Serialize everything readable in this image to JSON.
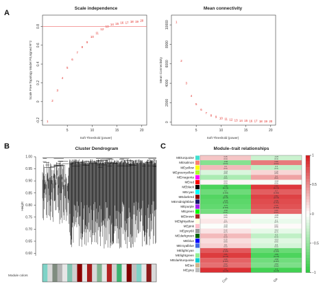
{
  "panels": {
    "a": {
      "letter": "A",
      "scale": {
        "title": "Scale independence",
        "xlabel": "Soft Threshold (power)",
        "ylabel": "Scale Free Topology Model Fit,signed R^2",
        "xticks": [
          5,
          10,
          15,
          20
        ],
        "yticks": [
          -0.2,
          0.0,
          0.2,
          0.4,
          0.6,
          0.8
        ],
        "xlim": [
          0,
          21
        ],
        "ylim": [
          -0.25,
          0.92
        ],
        "hline": 0.8,
        "hline_color": "#f08080",
        "powers": [
          "1",
          "2",
          "3",
          "4",
          "5",
          "6",
          "7",
          "8",
          "9",
          "10",
          "11",
          "12",
          "13",
          "14",
          "15",
          "16",
          "17",
          "18",
          "19",
          "20"
        ],
        "x": [
          1,
          2,
          3,
          4,
          5,
          6,
          7,
          8,
          9,
          10,
          11,
          12,
          13,
          14,
          15,
          16,
          17,
          18,
          19,
          20
        ],
        "y": [
          -0.21,
          0.01,
          0.12,
          0.25,
          0.36,
          0.45,
          0.52,
          0.58,
          0.63,
          0.69,
          0.73,
          0.77,
          0.8,
          0.82,
          0.83,
          0.84,
          0.84,
          0.85,
          0.85,
          0.86
        ]
      },
      "conn": {
        "title": "Mean connectivity",
        "xlabel": "Soft Threshold (power)",
        "ylabel": "Mean Connectivity",
        "xticks": [
          5,
          10,
          15,
          20
        ],
        "yticks": [
          0,
          2000,
          4000,
          6000,
          8000,
          10000
        ],
        "xlim": [
          0,
          21
        ],
        "ylim": [
          -300,
          11000
        ],
        "powers": [
          "1",
          "2",
          "3",
          "4",
          "5",
          "6",
          "7",
          "8",
          "9",
          "10",
          "11",
          "12",
          "13",
          "14",
          "15",
          "16",
          "17",
          "18",
          "19",
          "20"
        ],
        "x": [
          1,
          2,
          3,
          4,
          5,
          6,
          7,
          8,
          9,
          10,
          11,
          12,
          13,
          14,
          15,
          16,
          17,
          18,
          19,
          20
        ],
        "y": [
          10300,
          6300,
          4000,
          2700,
          1850,
          1300,
          950,
          700,
          530,
          410,
          320,
          260,
          210,
          175,
          150,
          130,
          115,
          100,
          90,
          80
        ]
      }
    },
    "b": {
      "letter": "B",
      "title": "Cluster Dendrogram",
      "ylabel": "Height",
      "yticks": [
        0.6,
        0.65,
        0.7,
        0.75,
        0.8,
        0.85,
        0.9,
        0.95,
        1.0
      ],
      "ylim": [
        0.59,
        1.0
      ],
      "colorbar_label": "Module colors",
      "colorbar": [
        "#7fd3c7",
        "#d9d9d9",
        "#7f8c7f",
        "#b3b3b3",
        "#e6e6e6",
        "#7fc4b0",
        "#d0d0d0",
        "#8b0000",
        "#e6e6e6",
        "#a61c1c",
        "#d9d9d9",
        "#7fb38f",
        "#e6e6e6",
        "#b22222",
        "#d0d0d0",
        "#3cb371",
        "#e6e6e6",
        "#800000",
        "#c0c0c0",
        "#7fd3c7",
        "#e6e6e6",
        "#8b1a1a",
        "#d9d9d9"
      ]
    },
    "c": {
      "letter": "C",
      "title": "Module–trait relationships",
      "traits": [
        "Con",
        "OA"
      ],
      "modules": [
        {
          "name": "MEturquoise",
          "swatch": "#40e0d0",
          "r": [
            0.25,
            -0.25
          ],
          "labels": [
            "0.25\n(0.4)",
            "-0.25\n(0.4)"
          ]
        },
        {
          "name": "MEsalmon",
          "swatch": "#fa8072",
          "r": [
            -0.58,
            0.58
          ],
          "labels": [
            "-0.58\n(0.03)",
            "0.58\n(0.03)"
          ]
        },
        {
          "name": "MEyellow",
          "swatch": "#ffff00",
          "r": [
            0.3,
            -0.3
          ],
          "labels": [
            "0.3\n(0.3)",
            "-0.3\n(0.3)"
          ]
        },
        {
          "name": "MEgreenyellow",
          "swatch": "#adff2f",
          "r": [
            -0.18,
            0.18
          ],
          "labels": [
            "-0.18\n(0.5)",
            "0.18\n(0.5)"
          ]
        },
        {
          "name": "MEmagenta",
          "swatch": "#ff00ff",
          "r": [
            -0.4,
            0.4
          ],
          "labels": [
            "-0.4\n(0.2)",
            "0.4\n(0.2)"
          ]
        },
        {
          "name": "MEred",
          "swatch": "#ff0000",
          "r": [
            0.04,
            -0.04
          ],
          "labels": [
            "0.04\n(0.9)",
            "-0.04\n(0.9)"
          ]
        },
        {
          "name": "MEblack",
          "swatch": "#000000",
          "r": [
            -0.86,
            0.86
          ],
          "labels": [
            "-0.86\n(8e-05)",
            "0.86\n(8e-05)"
          ]
        },
        {
          "name": "MEcyan",
          "swatch": "#00ffff",
          "r": [
            -0.7,
            0.7
          ],
          "labels": [
            "-0.7\n(0.005)",
            "0.7\n(0.005)"
          ]
        },
        {
          "name": "MEdarkred",
          "swatch": "#8b0000",
          "r": [
            -0.82,
            0.82
          ],
          "labels": [
            "-0.82\n(3e-04)",
            "0.82\n(3e-04)"
          ]
        },
        {
          "name": "MEmidnightblue",
          "swatch": "#191970",
          "r": [
            -0.78,
            0.78
          ],
          "labels": [
            "-0.78\n(0.001)",
            "0.78\n(0.001)"
          ]
        },
        {
          "name": "MEpurple",
          "swatch": "#a020f0",
          "r": [
            -0.75,
            0.75
          ],
          "labels": [
            "-0.75\n(0.002)",
            "0.75\n(0.002)"
          ]
        },
        {
          "name": "MEgreen",
          "swatch": "#00ff00",
          "r": [
            -0.66,
            0.66
          ],
          "labels": [
            "-0.66\n(0.01)",
            "0.66\n(0.01)"
          ]
        },
        {
          "name": "MEbrown",
          "swatch": "#a52a2a",
          "r": [
            0.05,
            -0.05
          ],
          "labels": [
            "0.05\n(0.9)",
            "-0.05\n(0.9)"
          ]
        },
        {
          "name": "MElightyellow",
          "swatch": "#ffffe0",
          "r": [
            0.1,
            -0.1
          ],
          "labels": [
            "0.1\n(0.7)",
            "-0.1\n(0.7)"
          ]
        },
        {
          "name": "MEpink",
          "swatch": "#ffc0cb",
          "r": [
            -0.02,
            0.02
          ],
          "labels": [
            "-0.02\n(0.9)",
            "0.02\n(0.9)"
          ]
        },
        {
          "name": "MEgrey60",
          "swatch": "#999999",
          "r": [
            0.12,
            -0.12
          ],
          "labels": [
            "0.12\n(0.7)",
            "-0.12\n(0.7)"
          ]
        },
        {
          "name": "MEdarkgreen",
          "swatch": "#006400",
          "r": [
            0.3,
            -0.3
          ],
          "labels": [
            "0.3\n(0.3)",
            "-0.3\n(0.3)"
          ]
        },
        {
          "name": "MEblue",
          "swatch": "#0000ff",
          "r": [
            0.15,
            -0.15
          ],
          "labels": [
            "0.15\n(0.6)",
            "-0.15\n(0.6)"
          ]
        },
        {
          "name": "MEroyalblue",
          "swatch": "#4169e1",
          "r": [
            0.2,
            -0.2
          ],
          "labels": [
            "0.2\n(0.5)",
            "-0.2\n(0.5)"
          ]
        },
        {
          "name": "MElightcyan",
          "swatch": "#e0ffff",
          "r": [
            0.72,
            -0.72
          ],
          "labels": [
            "0.72\n(0.004)",
            "-0.72\n(0.004)"
          ]
        },
        {
          "name": "MElightgreen",
          "swatch": "#90ee90",
          "r": [
            0.85,
            -0.85
          ],
          "labels": [
            "0.85\n(1e-04)",
            "-0.85\n(1e-04)"
          ]
        },
        {
          "name": "MEdarkturquoise",
          "swatch": "#00ced1",
          "r": [
            0.68,
            -0.68
          ],
          "labels": [
            "0.68\n(0.007)",
            "-0.68\n(0.007)"
          ]
        },
        {
          "name": "MEtan",
          "swatch": "#d2b48c",
          "r": [
            0.62,
            -0.62
          ],
          "labels": [
            "0.62\n(0.02)",
            "-0.62\n(0.02)"
          ]
        },
        {
          "name": "MEgrey",
          "swatch": "#bebebe",
          "r": [
            0.9,
            -0.9
          ],
          "labels": [
            "0.9\n(1e-05)",
            "-0.9\n(1e-05)"
          ]
        }
      ],
      "legend_ticks": [
        1,
        0.5,
        0,
        -0.5,
        -1
      ],
      "legend_labels": [
        "1",
        "0.5",
        "0",
        "−0.5",
        "−1"
      ],
      "colors": {
        "neg": "#2ecc40",
        "mid": "#ffffff",
        "pos": "#d7191c"
      }
    }
  },
  "chart_data": [
    {
      "type": "scatter",
      "title": "Scale independence",
      "xlabel": "Soft Threshold (power)",
      "ylabel": "Scale Free Topology Model Fit,signed R^2",
      "x": [
        1,
        2,
        3,
        4,
        5,
        6,
        7,
        8,
        9,
        10,
        11,
        12,
        13,
        14,
        15,
        16,
        17,
        18,
        19,
        20
      ],
      "y": [
        -0.21,
        0.01,
        0.12,
        0.25,
        0.36,
        0.45,
        0.52,
        0.58,
        0.63,
        0.69,
        0.73,
        0.77,
        0.8,
        0.82,
        0.83,
        0.84,
        0.84,
        0.85,
        0.85,
        0.86
      ],
      "hline": 0.8
    },
    {
      "type": "scatter",
      "title": "Mean connectivity",
      "xlabel": "Soft Threshold (power)",
      "ylabel": "Mean Connectivity",
      "x": [
        1,
        2,
        3,
        4,
        5,
        6,
        7,
        8,
        9,
        10,
        11,
        12,
        13,
        14,
        15,
        16,
        17,
        18,
        19,
        20
      ],
      "y": [
        10300,
        6300,
        4000,
        2700,
        1850,
        1300,
        950,
        700,
        530,
        410,
        320,
        260,
        210,
        175,
        150,
        130,
        115,
        100,
        90,
        80
      ]
    },
    {
      "type": "heatmap",
      "title": "Module–trait relationships",
      "columns": [
        "Con",
        "OA"
      ]
    }
  ]
}
